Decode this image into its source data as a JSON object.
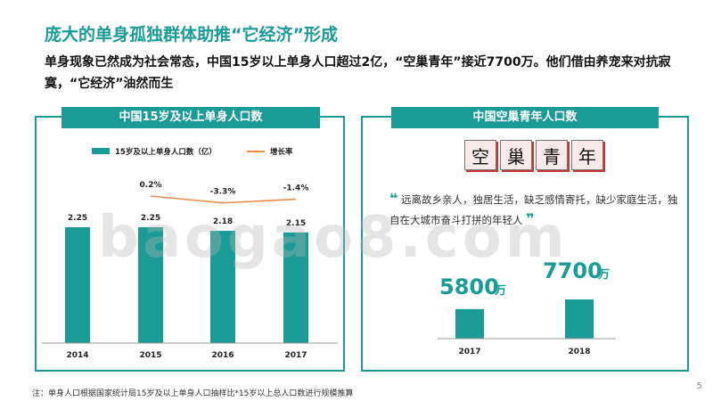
{
  "slide": {
    "title": "庞大的单身孤独群体助推“它经济”形成",
    "subtitle": "单身现象已然成为社会常态，中国15岁以上单身人口超过2亿，“空巢青年”接近7700万。他们借由养宠来对抗寂寞，“它经济”油然而生",
    "footnote": "注：单身人口根据国家统计局15岁及以上单身人口抽样比*15岁以上总人口数进行规模推算",
    "page_number": "5",
    "watermark": "baogao8.com"
  },
  "left_panel": {
    "header": "中国15岁及以上单身人口数"
  },
  "right_panel": {
    "header": "中国空巢青年人口数",
    "kong_chars": [
      "空",
      "巢",
      "青",
      "年"
    ],
    "quote_open": "❝",
    "quote_text": "远离故乡亲人，独居生活，缺乏感情寄托，缺少家庭生活，独自在大城市奋斗打拼的年轻人",
    "quote_close": "❞"
  },
  "colors": {
    "teal": "#1a9b96",
    "orange": "#f08c4a",
    "axis": "#999999"
  },
  "chart_data": [
    {
      "type": "bar",
      "categories": [
        "2014",
        "2015",
        "2016",
        "2017"
      ],
      "series": [
        {
          "name": "15岁及以上单身人口数（亿）",
          "values": [
            2.25,
            2.25,
            2.18,
            2.15
          ],
          "labels": [
            "2.25",
            "2.25",
            "2.18",
            "2.15"
          ]
        },
        {
          "name": "增长率",
          "type": "line",
          "values": [
            null,
            0.2,
            -3.3,
            -1.4
          ],
          "labels": [
            "",
            "0.2%",
            "-3.3%",
            "-1.4%"
          ]
        }
      ],
      "legend": "top"
    },
    {
      "type": "bar",
      "categories": [
        "2017",
        "2018"
      ],
      "values": [
        5800,
        7700
      ],
      "value_labels": [
        "5800",
        "7700"
      ],
      "unit": "万"
    }
  ]
}
